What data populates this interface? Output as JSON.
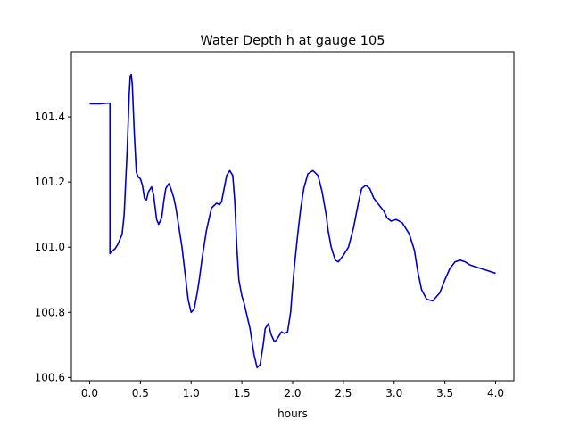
{
  "chart_data": {
    "type": "line",
    "title": "Water Depth h at gauge 105",
    "xlabel": "hours",
    "ylabel": "",
    "xlim": [
      -0.18,
      4.18
    ],
    "ylim": [
      100.59,
      101.6
    ],
    "xticks": [
      0.0,
      0.5,
      1.0,
      1.5,
      2.0,
      2.5,
      3.0,
      3.5,
      4.0
    ],
    "xtick_labels": [
      "0.0",
      "0.5",
      "1.0",
      "1.5",
      "2.0",
      "2.5",
      "3.0",
      "3.5",
      "4.0"
    ],
    "yticks": [
      100.6,
      100.8,
      101.0,
      101.2,
      101.4
    ],
    "ytick_labels": [
      "100.6",
      "100.8",
      "101.0",
      "101.2",
      "101.4"
    ],
    "grid": false,
    "series": [
      {
        "color": "#0000cc",
        "x": [
          0.0,
          0.1,
          0.18,
          0.2,
          0.2,
          0.21,
          0.25,
          0.28,
          0.32,
          0.34,
          0.37,
          0.39,
          0.4,
          0.41,
          0.42,
          0.44,
          0.46,
          0.48,
          0.5,
          0.52,
          0.54,
          0.56,
          0.58,
          0.61,
          0.63,
          0.66,
          0.68,
          0.71,
          0.73,
          0.75,
          0.78,
          0.8,
          0.83,
          0.85,
          0.88,
          0.91,
          0.94,
          0.97,
          1.0,
          1.03,
          1.06,
          1.08,
          1.11,
          1.15,
          1.2,
          1.25,
          1.28,
          1.3,
          1.35,
          1.38,
          1.41,
          1.43,
          1.45,
          1.47,
          1.5,
          1.52,
          1.55,
          1.58,
          1.62,
          1.65,
          1.68,
          1.71,
          1.73,
          1.76,
          1.79,
          1.82,
          1.84,
          1.87,
          1.89,
          1.92,
          1.95,
          1.98,
          2.0,
          2.02,
          2.05,
          2.08,
          2.11,
          2.15,
          2.2,
          2.25,
          2.29,
          2.33,
          2.35,
          2.38,
          2.42,
          2.45,
          2.5,
          2.55,
          2.6,
          2.65,
          2.68,
          2.72,
          2.76,
          2.8,
          2.85,
          2.9,
          2.93,
          2.97,
          3.02,
          3.08,
          3.15,
          3.2,
          3.23,
          3.27,
          3.32,
          3.38,
          3.45,
          3.5,
          3.55,
          3.6,
          3.65,
          3.7,
          3.75,
          3.8,
          3.9,
          4.0
        ],
        "y": [
          101.44,
          101.44,
          101.442,
          101.442,
          100.98,
          100.985,
          100.995,
          101.01,
          101.04,
          101.1,
          101.3,
          101.47,
          101.525,
          101.53,
          101.5,
          101.35,
          101.23,
          101.215,
          101.21,
          101.19,
          101.15,
          101.145,
          101.17,
          101.185,
          101.16,
          101.085,
          101.07,
          101.09,
          101.14,
          101.18,
          101.195,
          101.18,
          101.15,
          101.12,
          101.06,
          101.0,
          100.92,
          100.84,
          100.8,
          100.81,
          100.86,
          100.9,
          100.97,
          101.05,
          101.12,
          101.135,
          101.13,
          101.14,
          101.22,
          101.235,
          101.22,
          101.14,
          101.0,
          100.9,
          100.85,
          100.83,
          100.79,
          100.75,
          100.67,
          100.63,
          100.64,
          100.7,
          100.75,
          100.765,
          100.73,
          100.71,
          100.715,
          100.73,
          100.74,
          100.735,
          100.74,
          100.8,
          100.88,
          100.95,
          101.04,
          101.12,
          101.18,
          101.225,
          101.235,
          101.22,
          101.17,
          101.1,
          101.05,
          101.0,
          100.96,
          100.955,
          100.975,
          101.0,
          101.06,
          101.14,
          101.18,
          101.19,
          101.18,
          101.15,
          101.13,
          101.11,
          101.09,
          101.08,
          101.085,
          101.075,
          101.04,
          100.99,
          100.93,
          100.87,
          100.84,
          100.835,
          100.86,
          100.9,
          100.935,
          100.955,
          100.96,
          100.955,
          100.945,
          100.94,
          100.93,
          100.92
        ]
      }
    ]
  }
}
